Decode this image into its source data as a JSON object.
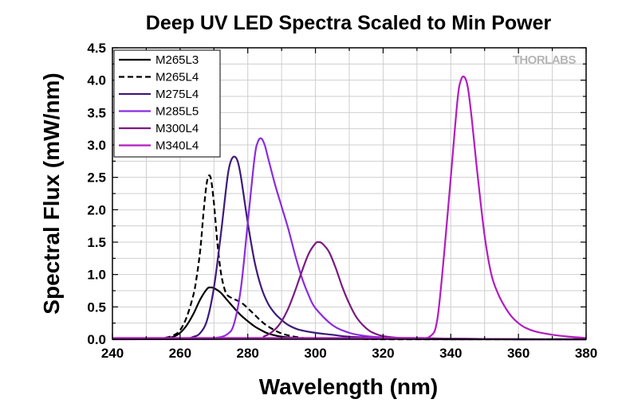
{
  "chart_data": {
    "type": "line",
    "title": "Deep UV LED Spectra Scaled to Min Power",
    "xlabel": "Wavelength (nm)",
    "ylabel": "Spectral Flux (mW/nm)",
    "xlim": [
      240,
      380
    ],
    "ylim": [
      0,
      4.5
    ],
    "x_ticks": [
      "240",
      "260",
      "280",
      "300",
      "320",
      "340",
      "360",
      "380"
    ],
    "y_ticks": [
      "0.0",
      "0.5",
      "1.0",
      "1.5",
      "2.0",
      "2.5",
      "3.0",
      "3.5",
      "4.0",
      "4.5"
    ],
    "grid": true,
    "legend_position": "top-left",
    "logo": "THORLABS",
    "series": [
      {
        "name": "M265L3",
        "color": "#000000",
        "dash": "solid",
        "x": [
          240,
          250,
          255,
          258,
          260,
          262,
          264,
          266,
          268,
          269,
          270,
          272,
          274,
          276,
          278,
          280,
          282,
          284,
          286,
          290,
          295,
          300,
          310,
          320,
          340,
          360,
          380
        ],
        "y": [
          0.01,
          0.01,
          0.01,
          0.04,
          0.1,
          0.22,
          0.4,
          0.62,
          0.78,
          0.8,
          0.79,
          0.72,
          0.6,
          0.48,
          0.37,
          0.28,
          0.2,
          0.14,
          0.09,
          0.04,
          0.02,
          0.01,
          0.01,
          0.01,
          0.0,
          0.0,
          0.0
        ]
      },
      {
        "name": "M265L4",
        "color": "#000000",
        "dash": "dashed",
        "x": [
          240,
          250,
          255,
          258,
          260,
          262,
          264,
          265,
          266,
          267,
          268,
          269,
          270,
          271,
          272,
          273,
          274,
          276,
          278,
          280,
          282,
          284,
          286,
          290,
          295,
          300,
          310,
          320,
          340,
          360,
          380
        ],
        "y": [
          0.01,
          0.01,
          0.02,
          0.06,
          0.14,
          0.35,
          0.7,
          1.0,
          1.4,
          2.0,
          2.45,
          2.5,
          2.1,
          1.5,
          1.05,
          0.8,
          0.68,
          0.62,
          0.57,
          0.48,
          0.38,
          0.28,
          0.2,
          0.09,
          0.03,
          0.01,
          0.01,
          0.0,
          0.0,
          0.0,
          0.0
        ]
      },
      {
        "name": "M275L4",
        "color": "#3d1a7a",
        "dash": "solid",
        "x": [
          240,
          260,
          264,
          266,
          268,
          270,
          272,
          274,
          275,
          276,
          277,
          278,
          280,
          282,
          284,
          286,
          288,
          290,
          292,
          295,
          300,
          305,
          310,
          320,
          330,
          340,
          360,
          380
        ],
        "y": [
          0.01,
          0.01,
          0.04,
          0.1,
          0.3,
          0.8,
          1.6,
          2.5,
          2.75,
          2.82,
          2.75,
          2.5,
          1.8,
          1.2,
          0.8,
          0.55,
          0.4,
          0.3,
          0.22,
          0.15,
          0.1,
          0.07,
          0.04,
          0.02,
          0.01,
          0.01,
          0.0,
          0.0
        ]
      },
      {
        "name": "M285L5",
        "color": "#8a2be2",
        "dash": "solid",
        "x": [
          240,
          260,
          270,
          274,
          276,
          278,
          280,
          282,
          283,
          284,
          285,
          286,
          288,
          290,
          292,
          294,
          296,
          298,
          300,
          305,
          310,
          315,
          320,
          325,
          330,
          340,
          360,
          380
        ],
        "y": [
          0.01,
          0.01,
          0.02,
          0.08,
          0.25,
          0.8,
          1.8,
          2.8,
          3.05,
          3.1,
          3.0,
          2.8,
          2.4,
          2.05,
          1.7,
          1.3,
          0.95,
          0.68,
          0.48,
          0.22,
          0.1,
          0.05,
          0.03,
          0.02,
          0.02,
          0.01,
          0.0,
          0.0
        ]
      },
      {
        "name": "M300L4",
        "color": "#7a1a80",
        "dash": "solid",
        "x": [
          240,
          280,
          285,
          288,
          290,
          292,
          294,
          296,
          298,
          300,
          301,
          302,
          304,
          306,
          308,
          310,
          312,
          314,
          316,
          318,
          320,
          325,
          330,
          340,
          360,
          380
        ],
        "y": [
          0.0,
          0.01,
          0.05,
          0.15,
          0.28,
          0.48,
          0.75,
          1.05,
          1.32,
          1.48,
          1.5,
          1.48,
          1.35,
          1.1,
          0.8,
          0.55,
          0.35,
          0.22,
          0.13,
          0.08,
          0.05,
          0.02,
          0.01,
          0.01,
          0.0,
          0.0
        ]
      },
      {
        "name": "M340L4",
        "color": "#b21cbf",
        "dash": "solid",
        "x": [
          240,
          320,
          330,
          334,
          336,
          338,
          340,
          342,
          343,
          344,
          345,
          346,
          347,
          348,
          350,
          352,
          354,
          356,
          358,
          360,
          362,
          365,
          370,
          375,
          380
        ],
        "y": [
          0.02,
          0.02,
          0.02,
          0.05,
          0.3,
          1.3,
          2.5,
          3.7,
          4.0,
          4.05,
          3.9,
          3.5,
          3.0,
          2.5,
          1.6,
          1.0,
          0.7,
          0.5,
          0.35,
          0.25,
          0.18,
          0.12,
          0.07,
          0.04,
          0.02
        ]
      }
    ]
  }
}
